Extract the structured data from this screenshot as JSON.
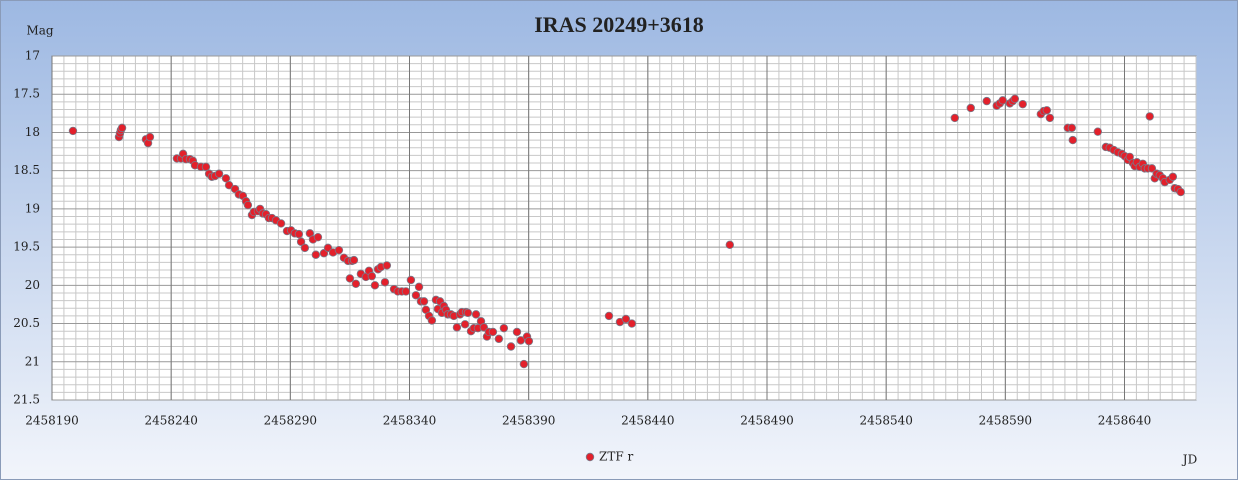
{
  "chart_data": {
    "type": "scatter",
    "title": "IRAS 20249+3618",
    "y_label": "Mag",
    "x_label": "JD",
    "xlim": [
      2458190,
      2458670
    ],
    "xticks": [
      2458190,
      2458240,
      2458290,
      2458340,
      2458390,
      2458440,
      2458490,
      2458540,
      2458590,
      2458640
    ],
    "ylim": [
      21.5,
      17
    ],
    "yticks": [
      17,
      17.5,
      18,
      18.5,
      19,
      19.5,
      20,
      20.5,
      21,
      21.5
    ],
    "grid": true,
    "legend": "bottom",
    "x": [
      2458198.8,
      2458218.1,
      2458218.5,
      2458218.9,
      2458219.4,
      2458229.4,
      2458230.3,
      2458231.1,
      2458242.4,
      2458244.1,
      2458245.0,
      2458246.2,
      2458247.9,
      2458249.1,
      2458250.0,
      2458252.5,
      2458254.6,
      2458255.9,
      2458257.1,
      2458258.4,
      2458260.1,
      2458263.0,
      2458264.3,
      2458266.8,
      2458268.4,
      2458270.1,
      2458271.4,
      2458272.2,
      2458273.9,
      2458274.7,
      2458276.4,
      2458277.3,
      2458278.5,
      2458279.8,
      2458281.0,
      2458282.3,
      2458284.0,
      2458286.1,
      2458288.6,
      2458290.3,
      2458291.9,
      2458293.6,
      2458294.5,
      2458296.1,
      2458298.2,
      2458299.5,
      2458301.6,
      2458300.7,
      2458304.1,
      2458305.8,
      2458307.9,
      2458310.4,
      2458312.5,
      2458314.2,
      2458315.0,
      2458315.9,
      2458316.7,
      2458317.5,
      2458319.6,
      2458321.7,
      2458323.0,
      2458324.2,
      2458325.5,
      2458326.8,
      2458328.0,
      2458329.7,
      2458330.5,
      2458333.5,
      2458335.1,
      2458336.8,
      2458338.5,
      2458340.6,
      2458342.7,
      2458344.0,
      2458344.8,
      2458346.1,
      2458346.9,
      2458348.2,
      2458349.4,
      2458351.1,
      2458351.9,
      2458352.8,
      2458353.6,
      2458354.4,
      2458355.3,
      2458356.1,
      2458357.4,
      2458358.6,
      2458359.9,
      2458361.2,
      2458362.0,
      2458363.3,
      2458363.7,
      2458364.5,
      2458365.8,
      2458367.0,
      2458367.9,
      2458368.7,
      2458370.0,
      2458371.2,
      2458372.5,
      2458373.3,
      2458375.0,
      2458377.5,
      2458379.6,
      2458382.6,
      2458385.1,
      2458386.7,
      2458388.0,
      2458389.3,
      2458390.1,
      2458423.7,
      2458428.3,
      2458430.8,
      2458433.3,
      2458474.4,
      2458568.8,
      2458575.5,
      2458582.2,
      2458586.4,
      2458587.7,
      2458588.9,
      2458591.9,
      2458593.1,
      2458594.0,
      2458597.3,
      2458604.9,
      2458606.1,
      2458607.4,
      2458608.7,
      2458616.2,
      2458617.9,
      2458618.3,
      2458628.8,
      2458632.2,
      2458633.8,
      2458635.5,
      2458637.2,
      2458638.9,
      2458640.1,
      2458641.4,
      2458642.2,
      2458643.5,
      2458644.3,
      2458645.2,
      2458646.4,
      2458647.7,
      2458648.5,
      2458649.8,
      2458650.6,
      2458651.5,
      2458652.7,
      2458653.5,
      2458654.8,
      2458656.1,
      2458656.9,
      2458659.0,
      2458660.3,
      2458661.1,
      2458662.4,
      2458663.6
    ],
    "series": [
      {
        "name": "ZTF r",
        "color": "#e3202b",
        "values": [
          17.98,
          18.06,
          18.01,
          17.97,
          17.94,
          18.09,
          18.14,
          18.06,
          18.34,
          18.34,
          18.28,
          18.35,
          18.35,
          18.37,
          18.43,
          18.45,
          18.45,
          18.54,
          18.58,
          18.57,
          18.54,
          18.6,
          18.69,
          18.74,
          18.81,
          18.83,
          18.9,
          18.95,
          19.08,
          19.04,
          19.03,
          19.0,
          19.06,
          19.07,
          19.12,
          19.12,
          19.15,
          19.19,
          19.29,
          19.28,
          19.32,
          19.33,
          19.43,
          19.51,
          19.32,
          19.4,
          19.37,
          19.6,
          19.58,
          19.51,
          19.57,
          19.54,
          19.64,
          19.68,
          19.91,
          19.68,
          19.67,
          19.98,
          19.85,
          19.89,
          19.81,
          19.88,
          20.0,
          19.79,
          19.76,
          19.96,
          19.74,
          20.05,
          20.08,
          20.08,
          20.08,
          19.93,
          20.13,
          20.02,
          20.21,
          20.21,
          20.32,
          20.4,
          20.46,
          20.19,
          20.31,
          20.21,
          20.36,
          20.27,
          20.32,
          20.38,
          20.38,
          20.4,
          20.55,
          20.38,
          20.35,
          20.51,
          20.35,
          20.36,
          20.6,
          20.56,
          20.38,
          20.56,
          20.47,
          20.55,
          20.67,
          20.61,
          20.61,
          20.7,
          20.56,
          20.8,
          20.61,
          20.72,
          21.03,
          20.67,
          20.73,
          20.4,
          20.48,
          20.44,
          20.5,
          19.47,
          17.81,
          17.68,
          17.59,
          17.65,
          17.62,
          17.58,
          17.62,
          17.59,
          17.56,
          17.63,
          17.76,
          17.72,
          17.71,
          17.81,
          17.94,
          17.94,
          18.1,
          17.99,
          18.19,
          18.2,
          18.23,
          18.26,
          18.28,
          18.31,
          18.36,
          18.32,
          18.4,
          18.44,
          18.39,
          18.45,
          18.41,
          18.47,
          18.47,
          17.79,
          18.47,
          18.6,
          18.54,
          18.56,
          18.6,
          18.65,
          18.62,
          18.58,
          18.73,
          18.74,
          18.78
        ]
      }
    ]
  }
}
